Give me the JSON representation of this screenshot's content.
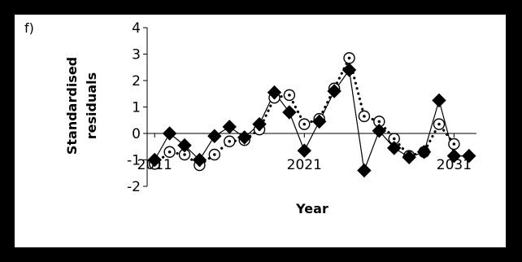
{
  "panel_label": "f)",
  "chart_data": {
    "type": "line",
    "title": "",
    "xlabel": "Year",
    "ylabel_lines": [
      "Standardised",
      "residuals"
    ],
    "ylim": [
      -2,
      4
    ],
    "yticks": [
      -2,
      -1,
      0,
      1,
      2,
      3,
      4
    ],
    "xlim": [
      2010.5,
      2032.5
    ],
    "xticks": [
      {
        "value": 2011,
        "label": "2011"
      },
      {
        "value": 2021,
        "label": "2021"
      },
      {
        "value": 2031,
        "label": "2031"
      }
    ],
    "grid": false,
    "legend": "none",
    "series": [
      {
        "style": "solid",
        "color": "#000000",
        "marker": "filled-diamond",
        "x": [
          2011,
          2012,
          2013,
          2014,
          2015,
          2016,
          2017,
          2018,
          2019,
          2020,
          2021,
          2022,
          2023,
          2024,
          2025,
          2026,
          2027,
          2028,
          2029,
          2030,
          2031,
          2032
        ],
        "values": [
          -1.0,
          0.0,
          -0.45,
          -1.0,
          -0.1,
          0.25,
          -0.15,
          0.35,
          1.55,
          0.8,
          -0.65,
          0.45,
          1.6,
          2.4,
          -1.4,
          0.1,
          -0.55,
          -0.9,
          -0.7,
          1.25,
          -0.85,
          -0.85
        ]
      },
      {
        "style": "dotted",
        "color": "#000000",
        "marker": "open-circle-dot",
        "x": [
          2011,
          2012,
          2013,
          2014,
          2015,
          2016,
          2017,
          2018,
          2019,
          2020,
          2021,
          2022,
          2023,
          2024,
          2025,
          2026,
          2027,
          2028,
          2029,
          2030,
          2031
        ],
        "values": [
          -1.15,
          -0.7,
          -0.8,
          -1.2,
          -0.8,
          -0.3,
          -0.25,
          0.15,
          1.35,
          1.45,
          0.35,
          0.55,
          1.7,
          2.85,
          0.65,
          0.45,
          -0.2,
          -0.85,
          -0.7,
          0.35,
          -0.4
        ]
      }
    ]
  }
}
